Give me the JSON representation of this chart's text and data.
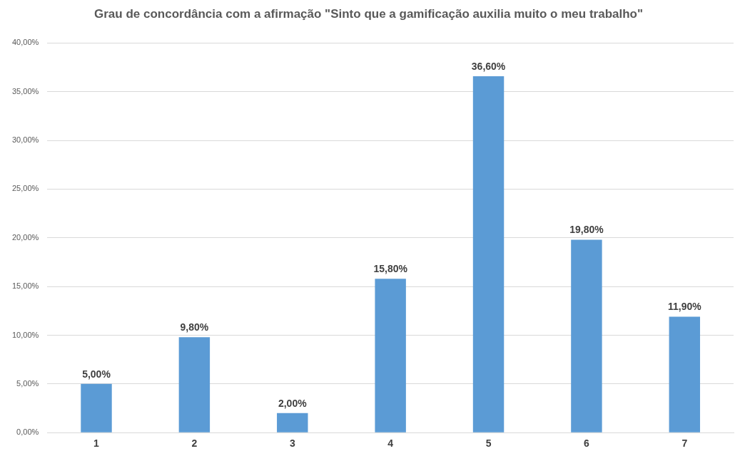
{
  "chart_data": {
    "type": "bar",
    "title": "Grau de concordância com a afirmação \"Sinto que a gamificação auxilia muito o meu trabalho\"",
    "categories": [
      "1",
      "2",
      "3",
      "4",
      "5",
      "6",
      "7"
    ],
    "values": [
      5.0,
      9.8,
      2.0,
      15.8,
      36.6,
      19.8,
      11.9
    ],
    "value_labels": [
      "5,00%",
      "9,80%",
      "2,00%",
      "15,80%",
      "36,60%",
      "19,80%",
      "11,90%"
    ],
    "color": "#5b9bd5",
    "ylim": [
      0,
      40
    ],
    "yticks": [
      {
        "value": 0,
        "label": "0,00%"
      },
      {
        "value": 5,
        "label": "5,00%"
      },
      {
        "value": 10,
        "label": "10,00%"
      },
      {
        "value": 15,
        "label": "15,00%"
      },
      {
        "value": 20,
        "label": "20,00%"
      },
      {
        "value": 25,
        "label": "25,00%"
      },
      {
        "value": 30,
        "label": "30,00%"
      },
      {
        "value": 35,
        "label": "35,00%"
      },
      {
        "value": 40,
        "label": "40,00%"
      }
    ],
    "grid": "y"
  }
}
